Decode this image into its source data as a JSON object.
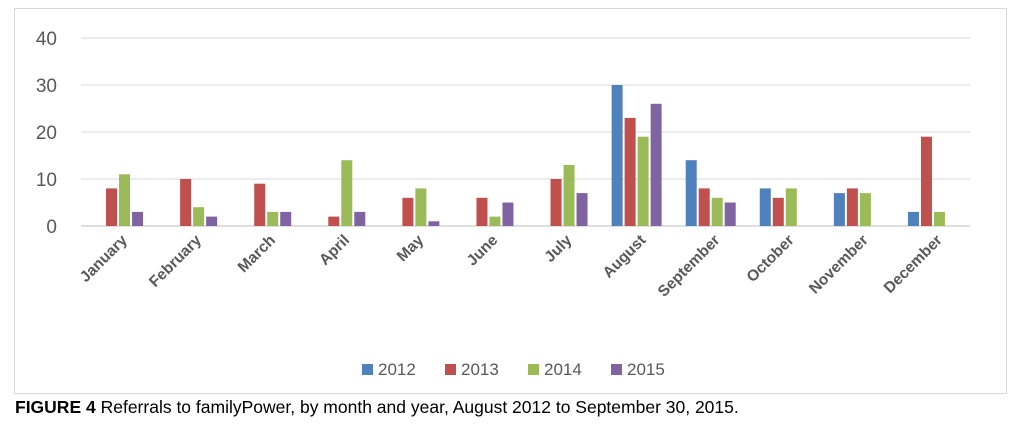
{
  "caption": {
    "label": "FIGURE 4",
    "text": "Referrals to familyPower, by month and year, August 2012 to September 30, 2015."
  },
  "chart_data": {
    "type": "bar",
    "categories": [
      "January",
      "February",
      "March",
      "April",
      "May",
      "June",
      "July",
      "August",
      "September",
      "October",
      "November",
      "December"
    ],
    "series": [
      {
        "name": "2012",
        "color": "#4f81bd",
        "values": [
          0,
          0,
          0,
          0,
          0,
          0,
          0,
          30,
          14,
          8,
          7,
          3
        ]
      },
      {
        "name": "2013",
        "color": "#c0504d",
        "values": [
          8,
          10,
          9,
          2,
          6,
          6,
          10,
          23,
          8,
          6,
          8,
          19
        ]
      },
      {
        "name": "2014",
        "color": "#9bbb59",
        "values": [
          11,
          4,
          3,
          14,
          8,
          2,
          13,
          19,
          6,
          8,
          7,
          3
        ]
      },
      {
        "name": "2015",
        "color": "#8064a2",
        "values": [
          3,
          2,
          3,
          3,
          1,
          5,
          7,
          26,
          5,
          0,
          0,
          0
        ]
      }
    ],
    "yticks": [
      0,
      10,
      20,
      30,
      40
    ],
    "ylim": [
      0,
      40
    ],
    "grid": true,
    "legend_position": "bottom"
  }
}
